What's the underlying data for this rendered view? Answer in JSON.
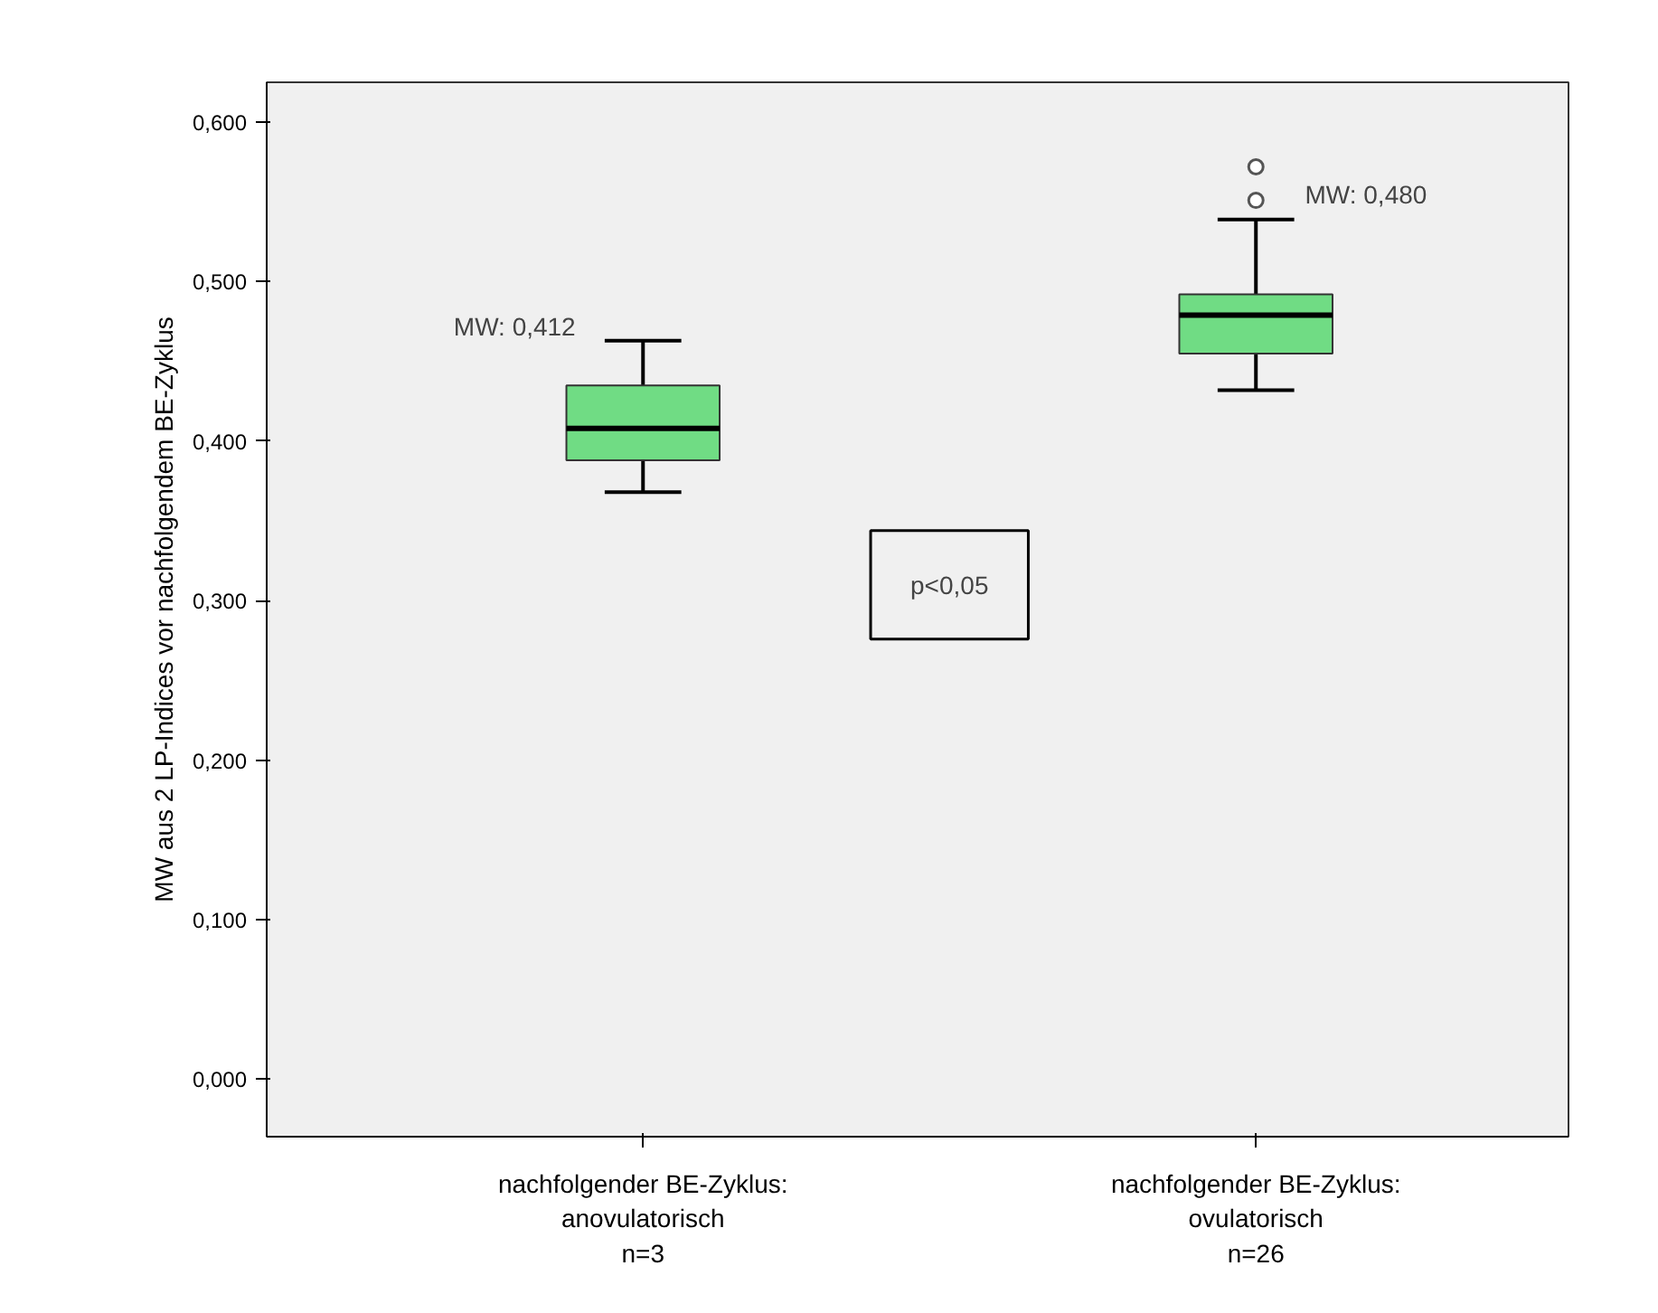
{
  "chart_data": {
    "type": "box",
    "ylabel": "MW aus 2 LP-Indices vor nachfolgendem BE-Zyklus",
    "categories": [
      "nachfolgender BE-Zyklus:\nanovulatorisch\nn=3",
      "nachfolgender BE-Zyklus:\novulatorisch\nn=26"
    ],
    "boxes": [
      {
        "low": 0.368,
        "q1": 0.388,
        "median": 0.408,
        "q3": 0.435,
        "high": 0.463
      },
      {
        "low": 0.432,
        "q1": 0.455,
        "median": 0.479,
        "q3": 0.492,
        "high": 0.539,
        "outliers": [
          0.551,
          0.572
        ]
      }
    ],
    "color": "#70dc84",
    "ylim": [
      -0.036,
      0.625
    ],
    "yticks": [
      {
        "value": 0,
        "label": "0,000"
      },
      {
        "value": 0.1,
        "label": "0,100"
      },
      {
        "value": 0.2,
        "label": "0,200"
      },
      {
        "value": 0.3,
        "label": "0,300"
      },
      {
        "value": 0.4,
        "label": "0,400"
      },
      {
        "value": 0.5,
        "label": "0,500"
      },
      {
        "value": 0.6,
        "label": "0,600"
      }
    ],
    "annotations": [
      "MW: 0,412",
      "MW: 0,480",
      "p<0,05"
    ],
    "grid": false
  }
}
